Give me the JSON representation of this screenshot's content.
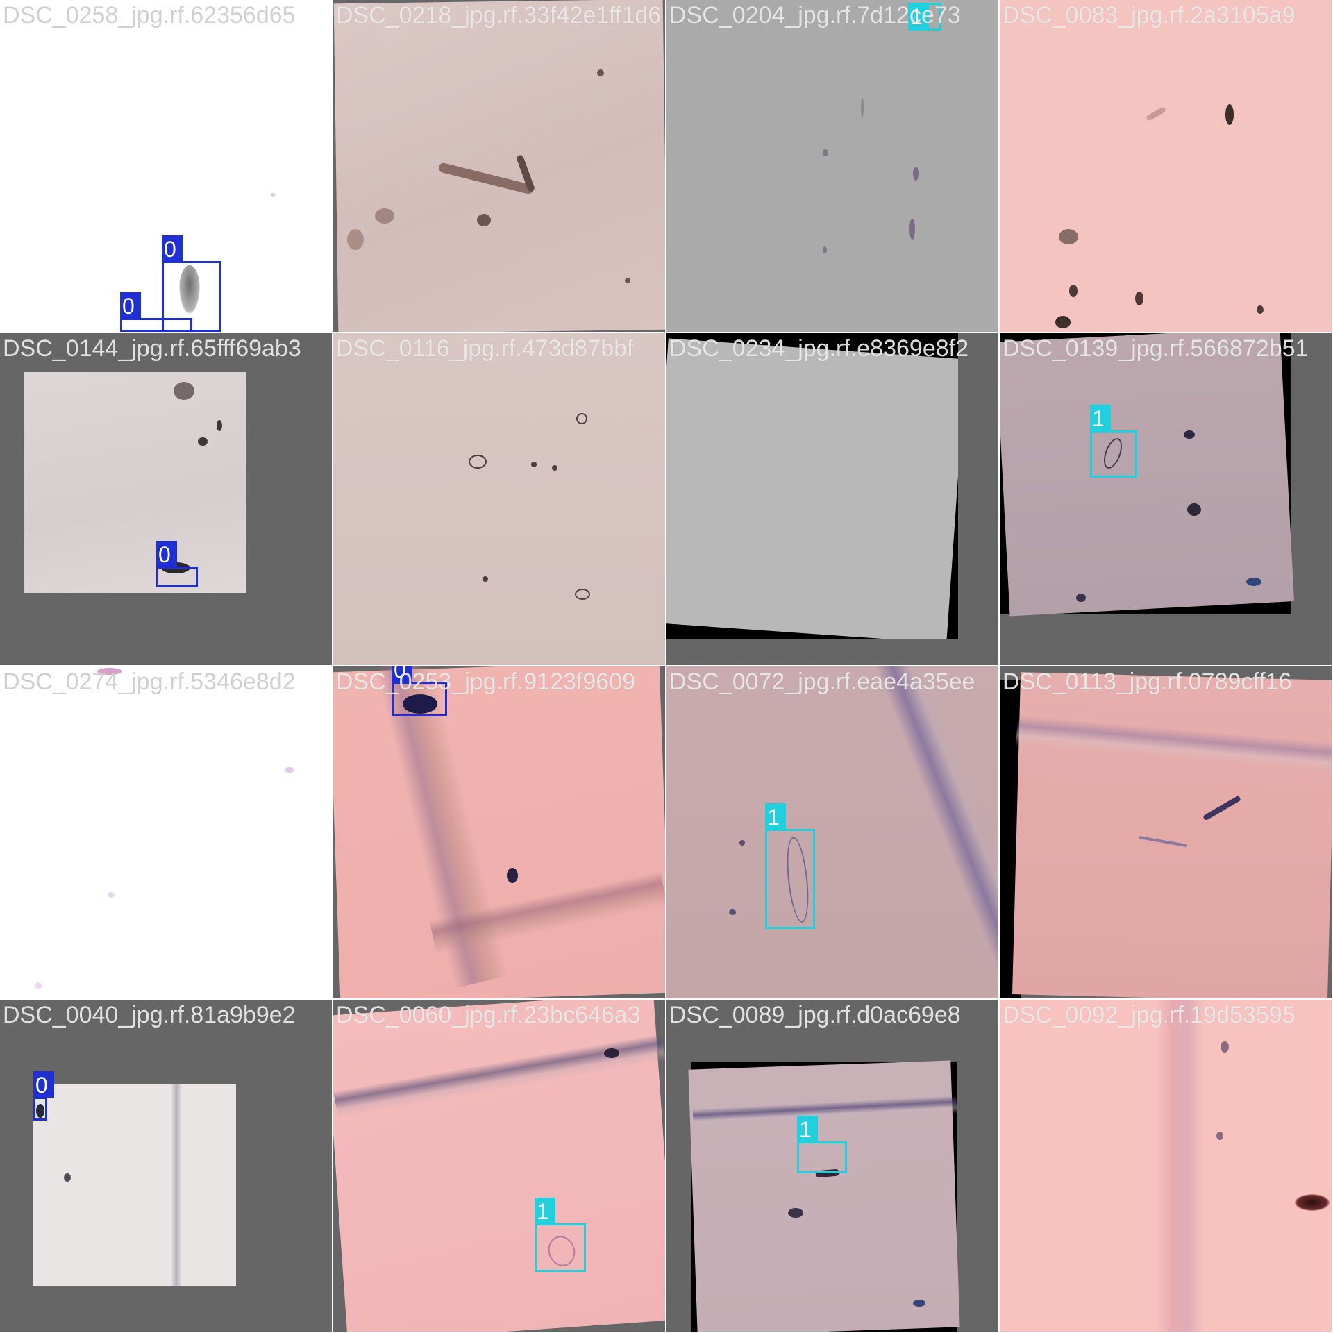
{
  "colors": {
    "class_0": "#1f2fd6",
    "class_1": "#20d0dc",
    "pad_gray": "#666666",
    "pad_black": "#000000"
  },
  "tiles": [
    {
      "filename": "DSC_0258_jpg.rf.62356d65",
      "bg": "#ffffff",
      "pad": "none",
      "boxes": [
        {
          "cls": "0"
        },
        {
          "cls": "0"
        }
      ]
    },
    {
      "filename": "DSC_0218_jpg.rf.33f42e1ff1d6",
      "bg": "#d9c3c0",
      "pad": "none",
      "boxes": []
    },
    {
      "filename": "DSC_0204_jpg.rf.7d12ce73",
      "bg": "#a9a9a9",
      "pad": "none",
      "boxes": [
        {
          "cls": "1"
        }
      ]
    },
    {
      "filename": "DSC_0083_jpg.rf.2a3105a9",
      "bg": "#f3c4bf",
      "pad": "none",
      "boxes": []
    },
    {
      "filename": "DSC_0144_jpg.rf.65fff69ab3",
      "bg": "#ddd5d5",
      "pad": "gray",
      "boxes": [
        {
          "cls": "0"
        }
      ]
    },
    {
      "filename": "DSC_0116_jpg.rf.473d87bbf",
      "bg": "#d8c6c3",
      "pad": "none",
      "boxes": []
    },
    {
      "filename": "DSC_0234_jpg.rf.e8369e8f2",
      "bg": "#b7b7b7",
      "pad": "black",
      "boxes": []
    },
    {
      "filename": "DSC_0139_jpg.rf.566872b51",
      "bg": "#b9a4ab",
      "pad": "black",
      "boxes": [
        {
          "cls": "1"
        }
      ]
    },
    {
      "filename": "DSC_0274_jpg.rf.5346e8d2",
      "bg": "#ffffff",
      "pad": "none",
      "boxes": []
    },
    {
      "filename": "DSC_0253_jpg.rf.9123f9609",
      "bg": "#f0b5b0",
      "pad": "gray",
      "boxes": [
        {
          "cls": "0"
        }
      ]
    },
    {
      "filename": "DSC_0072_jpg.rf.eae4a35ee",
      "bg": "#c8a8ab",
      "pad": "none",
      "boxes": [
        {
          "cls": "1"
        }
      ]
    },
    {
      "filename": "DSC_0113_jpg.rf.0789cff16",
      "bg": "#e3aaa8",
      "pad": "black",
      "boxes": []
    },
    {
      "filename": "DSC_0040_jpg.rf.81a9b9e2",
      "bg": "#e9e5e5",
      "pad": "gray",
      "boxes": [
        {
          "cls": "0"
        }
      ]
    },
    {
      "filename": "DSC_0060_jpg.rf.23bc646a3",
      "bg": "#f4b9ba",
      "pad": "gray",
      "boxes": [
        {
          "cls": "1"
        }
      ]
    },
    {
      "filename": "DSC_0089_jpg.rf.d0ac69e8",
      "bg": "#c6b0b6",
      "pad": "black",
      "boxes": [
        {
          "cls": "1"
        }
      ]
    },
    {
      "filename": "DSC_0092_jpg.rf.19d53595",
      "bg": "#f7c1bd",
      "pad": "none",
      "boxes": []
    }
  ]
}
